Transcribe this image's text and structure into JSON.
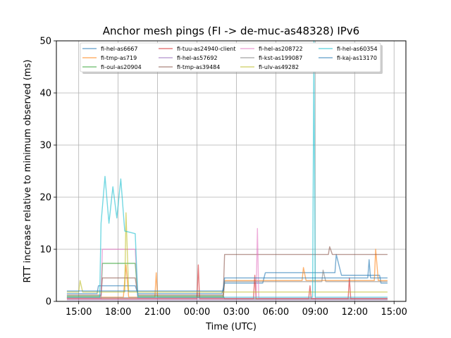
{
  "chart_data": {
    "type": "line",
    "title": "Anchor mesh pings (FI -> de-muc-as48328) IPv6",
    "xlabel": "Time (UTC)",
    "ylabel": "RTT increase relative to minimum observed (ms)",
    "ylim": [
      0,
      50
    ],
    "y_ticks": [
      0,
      10,
      20,
      30,
      40,
      50
    ],
    "xlim": [
      13.3,
      39.9
    ],
    "x_ticks": [
      {
        "value": 15,
        "label": "15:00"
      },
      {
        "value": 18,
        "label": "18:00"
      },
      {
        "value": 21,
        "label": "21:00"
      },
      {
        "value": 24,
        "label": "00:00"
      },
      {
        "value": 27,
        "label": "03:00"
      },
      {
        "value": 30,
        "label": "06:00"
      },
      {
        "value": 33,
        "label": "09:00"
      },
      {
        "value": 36,
        "label": "12:00"
      },
      {
        "value": 39,
        "label": "15:00"
      }
    ],
    "grid": true,
    "legend_position": "top-center",
    "series": [
      {
        "name": "fi-hel-as6667",
        "color": "#1f77b4",
        "points": [
          [
            14.1,
            1.5
          ],
          [
            16.4,
            1.5
          ],
          [
            16.5,
            3.0
          ],
          [
            19.3,
            3.0
          ],
          [
            19.5,
            1.5
          ],
          [
            25.9,
            1.5
          ],
          [
            26.1,
            3.5
          ],
          [
            29.0,
            3.5
          ],
          [
            29.2,
            5.5
          ],
          [
            34.5,
            5.5
          ],
          [
            34.6,
            9.0
          ],
          [
            35.0,
            5.0
          ],
          [
            37.9,
            5.0
          ],
          [
            38.0,
            3.5
          ],
          [
            38.5,
            3.5
          ]
        ]
      },
      {
        "name": "fi-tmp-as719",
        "color": "#ff7f0e",
        "points": [
          [
            14.1,
            0.8
          ],
          [
            18.4,
            0.8
          ],
          [
            18.6,
            7.0
          ],
          [
            18.8,
            0.8
          ],
          [
            20.8,
            0.8
          ],
          [
            20.9,
            5.5
          ],
          [
            21.0,
            0.8
          ],
          [
            26.0,
            0.8
          ],
          [
            26.1,
            4.0
          ],
          [
            32.0,
            4.0
          ],
          [
            32.1,
            6.5
          ],
          [
            32.3,
            4.0
          ],
          [
            37.5,
            4.0
          ],
          [
            37.6,
            10.0
          ],
          [
            37.8,
            4.0
          ],
          [
            38.5,
            4.0
          ]
        ]
      },
      {
        "name": "fi-oul-as20904",
        "color": "#2ca02c",
        "points": [
          [
            14.1,
            1.0
          ],
          [
            16.7,
            1.0
          ],
          [
            16.8,
            7.3
          ],
          [
            19.3,
            7.3
          ],
          [
            19.5,
            1.0
          ],
          [
            26.0,
            1.0
          ],
          [
            26.1,
            0.5
          ],
          [
            38.5,
            0.5
          ]
        ]
      },
      {
        "name": "fi-tuu-as24940-client",
        "color": "#d62728",
        "points": [
          [
            14.1,
            0.5
          ],
          [
            24.0,
            0.5
          ],
          [
            24.1,
            7.0
          ],
          [
            24.2,
            0.5
          ],
          [
            28.3,
            0.5
          ],
          [
            28.4,
            5.0
          ],
          [
            28.5,
            0.5
          ],
          [
            32.5,
            0.5
          ],
          [
            32.6,
            3.0
          ],
          [
            32.7,
            0.5
          ],
          [
            35.5,
            0.5
          ],
          [
            35.6,
            4.5
          ],
          [
            35.7,
            0.5
          ],
          [
            38.5,
            0.5
          ]
        ]
      },
      {
        "name": "fi-hel-as57692",
        "color": "#9467bd",
        "points": [
          [
            14.1,
            0.3
          ],
          [
            38.5,
            0.3
          ]
        ]
      },
      {
        "name": "fi-tmp-as39484",
        "color": "#8c564b",
        "points": [
          [
            14.1,
            1.2
          ],
          [
            16.7,
            1.2
          ],
          [
            16.8,
            4.5
          ],
          [
            19.3,
            4.5
          ],
          [
            19.5,
            1.2
          ],
          [
            26.0,
            1.2
          ],
          [
            26.1,
            9.0
          ],
          [
            34.0,
            9.0
          ],
          [
            34.1,
            10.5
          ],
          [
            34.3,
            9.0
          ],
          [
            38.5,
            9.0
          ]
        ]
      },
      {
        "name": "fi-hel-as208722",
        "color": "#e377c2",
        "points": [
          [
            14.1,
            0.6
          ],
          [
            16.7,
            0.6
          ],
          [
            16.8,
            10.0
          ],
          [
            19.3,
            10.0
          ],
          [
            19.5,
            0.6
          ],
          [
            28.5,
            0.6
          ],
          [
            28.6,
            14.0
          ],
          [
            28.7,
            0.6
          ],
          [
            38.5,
            0.6
          ]
        ]
      },
      {
        "name": "fi-kst-as199087",
        "color": "#7f7f7f",
        "points": [
          [
            14.1,
            0.7
          ],
          [
            26.0,
            0.7
          ],
          [
            26.1,
            3.8
          ],
          [
            33.5,
            3.8
          ],
          [
            33.6,
            6.0
          ],
          [
            33.8,
            3.8
          ],
          [
            38.5,
            3.8
          ]
        ]
      },
      {
        "name": "fi-ulv-as49282",
        "color": "#bcbd22",
        "points": [
          [
            14.1,
            1.8
          ],
          [
            15.0,
            1.8
          ],
          [
            15.1,
            4.0
          ],
          [
            15.3,
            1.8
          ],
          [
            18.5,
            1.8
          ],
          [
            18.6,
            17.0
          ],
          [
            18.8,
            1.8
          ],
          [
            38.5,
            1.8
          ]
        ]
      },
      {
        "name": "fi-hel-as60354",
        "color": "#17becf",
        "points": [
          [
            14.1,
            0.8
          ],
          [
            16.6,
            0.8
          ],
          [
            16.7,
            15.0
          ],
          [
            17.0,
            24.0
          ],
          [
            17.3,
            15.0
          ],
          [
            17.6,
            22.0
          ],
          [
            17.9,
            16.0
          ],
          [
            18.2,
            23.5
          ],
          [
            18.5,
            13.5
          ],
          [
            19.3,
            13.0
          ],
          [
            19.5,
            0.8
          ],
          [
            32.8,
            0.8
          ],
          [
            32.9,
            50.0
          ],
          [
            33.0,
            0.8
          ],
          [
            38.5,
            0.8
          ]
        ]
      },
      {
        "name": "fi-kaj-as13170",
        "color": "#1f77b4",
        "points": [
          [
            14.1,
            2.0
          ],
          [
            26.0,
            2.0
          ],
          [
            26.1,
            4.5
          ],
          [
            37.0,
            4.5
          ],
          [
            37.1,
            8.0
          ],
          [
            37.2,
            4.5
          ],
          [
            38.5,
            4.5
          ]
        ]
      }
    ]
  }
}
